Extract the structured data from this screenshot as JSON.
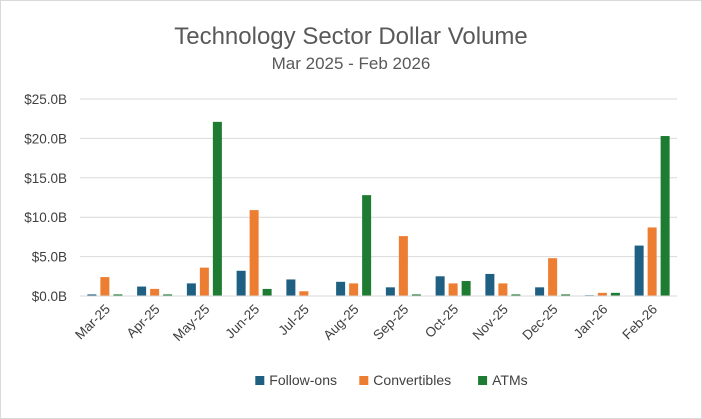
{
  "chart_data": {
    "type": "bar",
    "title": "Technology Sector Dollar Volume",
    "subtitle": "Mar 2025 - Feb 2026",
    "xlabel": "",
    "ylabel": "",
    "ylim": [
      0,
      25
    ],
    "ytick_values": [
      0,
      5,
      10,
      15,
      20,
      25
    ],
    "ytick_labels": [
      "$0.0B",
      "$5.0B",
      "$10.0B",
      "$15.0B",
      "$20.0B",
      "$25.0B"
    ],
    "grid": true,
    "legend_position": "bottom",
    "categories": [
      "Mar-25",
      "Apr-25",
      "May-25",
      "Jun-25",
      "Jul-25",
      "Aug-25",
      "Sep-25",
      "Oct-25",
      "Nov-25",
      "Dec-25",
      "Jan-26",
      "Feb-26"
    ],
    "series": [
      {
        "name": "Follow-ons",
        "color": "#1f5f82",
        "values": [
          0.2,
          1.2,
          1.6,
          3.2,
          2.1,
          1.8,
          1.1,
          2.5,
          2.8,
          1.1,
          0.1,
          6.4
        ]
      },
      {
        "name": "Convertibles",
        "color": "#ed7d31",
        "values": [
          2.4,
          0.9,
          3.6,
          10.9,
          0.6,
          1.6,
          7.6,
          1.6,
          1.6,
          4.8,
          0.4,
          8.7
        ]
      },
      {
        "name": "ATMs",
        "color": "#1e7b32",
        "values": [
          0.2,
          0.2,
          22.1,
          0.9,
          0.0,
          12.8,
          0.2,
          1.9,
          0.2,
          0.2,
          0.4,
          20.3
        ]
      }
    ]
  }
}
